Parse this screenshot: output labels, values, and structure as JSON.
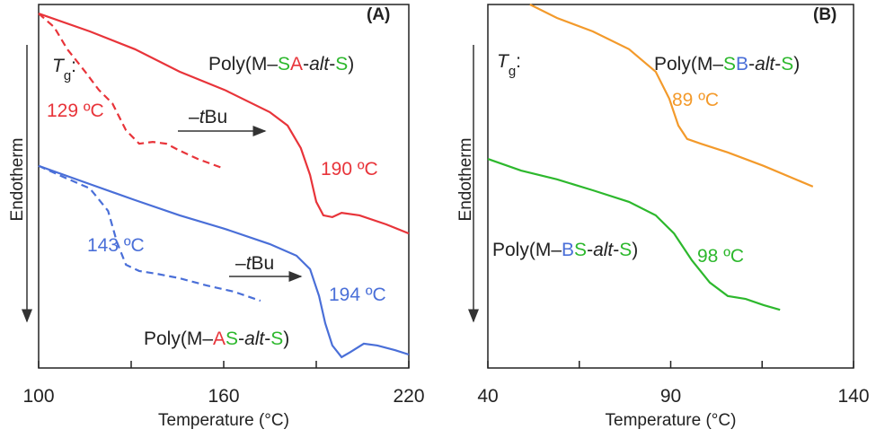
{
  "chart_data": [
    {
      "type": "line",
      "panel_label": "(A)",
      "xlabel": "Temperature (°C)",
      "ylabel": "Endotherm",
      "xlim": [
        100,
        220
      ],
      "xticks": [
        100,
        160,
        220
      ],
      "xminor": [
        130,
        190
      ],
      "ylim": [
        0,
        100
      ],
      "series": [
        {
          "color": "#e8343a",
          "linestyle": "solid",
          "x": [
            100,
            116.6,
            131.2,
            145.7,
            160.3,
            174.9,
            180.7,
            185.0,
            188.0,
            190.0,
            192.3,
            195.2,
            198.2,
            204.0,
            212.7,
            220
          ],
          "values": [
            97.5,
            92.6,
            87.7,
            81.5,
            76.5,
            70.4,
            66.7,
            60.5,
            53.1,
            45.7,
            42.0,
            41.5,
            42.7,
            42.0,
            39.5,
            37.0
          ]
        },
        {
          "color": "#e8343a",
          "linestyle": "dashed",
          "x": [
            100,
            105.0,
            109.3,
            115.1,
            119.5,
            123.9,
            128.3,
            132.6,
            137.0,
            141.4,
            145.7,
            151.6,
            160.3
          ],
          "values": [
            97.5,
            93.8,
            87.7,
            81.5,
            76.5,
            72.8,
            65.4,
            61.7,
            62.2,
            61.7,
            59.8,
            57.5,
            54.8
          ]
        },
        {
          "color": "#4a6fd8",
          "linestyle": "solid",
          "x": [
            100,
            116.6,
            131.2,
            145.7,
            160.3,
            174.9,
            183.6,
            188.0,
            190.9,
            192.9,
            195.2,
            198.2,
            201.1,
            205.4,
            209.8,
            215.6,
            220
          ],
          "values": [
            55.6,
            50.6,
            46.2,
            42.0,
            38.3,
            34.1,
            30.9,
            27.2,
            19.8,
            12.3,
            6.2,
            3.0,
            4.4,
            6.7,
            6.2,
            4.9,
            3.7
          ]
        },
        {
          "color": "#4a6fd8",
          "linestyle": "dashed",
          "x": [
            100,
            107.9,
            116.6,
            122.5,
            125.4,
            128.3,
            132.6,
            138.4,
            145.7,
            154.5,
            163.2,
            171.9
          ],
          "values": [
            55.6,
            52.6,
            49.4,
            43.2,
            34.6,
            28.4,
            26.7,
            25.9,
            24.7,
            22.7,
            21.0,
            18.5
          ]
        }
      ],
      "annotations": [
        [
          {
            "text": "T",
            "style": "italic"
          },
          {
            "text": "g",
            "style": "sub"
          },
          {
            "text": ":"
          }
        ],
        [
          {
            "text": "Poly(M–"
          },
          {
            "text": "S",
            "color": "#2db82d"
          },
          {
            "text": "A",
            "color": "#e8343a"
          },
          {
            "text": "-"
          },
          {
            "text": "alt",
            "style": "italic"
          },
          {
            "text": "-"
          },
          {
            "text": "S",
            "color": "#2db82d"
          },
          {
            "text": ")"
          }
        ],
        [
          {
            "text": "129 ºC",
            "color": "#e8343a"
          }
        ],
        [
          {
            "text": "–"
          },
          {
            "text": "t",
            "style": "italic"
          },
          {
            "text": "Bu"
          }
        ],
        [
          {
            "text": "190 ºC",
            "color": "#e8343a"
          }
        ],
        [
          {
            "text": "143 ºC",
            "color": "#4a6fd8"
          }
        ],
        [
          {
            "text": "–"
          },
          {
            "text": "t",
            "style": "italic"
          },
          {
            "text": "Bu"
          }
        ],
        [
          {
            "text": "194 ºC",
            "color": "#4a6fd8"
          }
        ],
        [
          {
            "text": "Poly(M–"
          },
          {
            "text": "A",
            "color": "#e8343a"
          },
          {
            "text": "S",
            "color": "#2db82d"
          },
          {
            "text": "-"
          },
          {
            "text": "alt",
            "style": "italic"
          },
          {
            "text": "-"
          },
          {
            "text": "S",
            "color": "#2db82d"
          },
          {
            "text": ")"
          }
        ]
      ]
    },
    {
      "type": "line",
      "panel_label": "(B)",
      "xlabel": "Temperature (°C)",
      "ylabel": "Endotherm",
      "xlim": [
        40,
        140
      ],
      "xticks": [
        40,
        90,
        140
      ],
      "xminor": [
        65,
        115
      ],
      "ylim": [
        0,
        100
      ],
      "series": [
        {
          "color": "#f39a2b",
          "linestyle": "solid",
          "x": [
            51.5,
            58.9,
            68.7,
            78.6,
            85.9,
            89.6,
            92.1,
            94.5,
            98.2,
            105.6,
            115.4,
            128.9
          ],
          "values": [
            100,
            96.3,
            92.6,
            87.7,
            81.5,
            74.1,
            66.7,
            63.0,
            61.7,
            59.3,
            55.6,
            49.9
          ]
        },
        {
          "color": "#2db82d",
          "linestyle": "solid",
          "x": [
            40,
            49.1,
            58.9,
            68.7,
            78.6,
            85.9,
            90.9,
            95.8,
            100.7,
            105.6,
            110.5,
            115.4,
            119.9
          ],
          "values": [
            57.5,
            54.3,
            51.9,
            48.9,
            45.7,
            42.0,
            37.0,
            29.6,
            23.5,
            19.8,
            19.0,
            17.3,
            16.0
          ]
        }
      ],
      "annotations": [
        [
          {
            "text": "T",
            "style": "italic"
          },
          {
            "text": "g",
            "style": "sub"
          },
          {
            "text": ":"
          }
        ],
        [
          {
            "text": "Poly(M–"
          },
          {
            "text": "S",
            "color": "#2db82d"
          },
          {
            "text": "B",
            "color": "#4a6fd8"
          },
          {
            "text": "-"
          },
          {
            "text": "alt",
            "style": "italic"
          },
          {
            "text": "-"
          },
          {
            "text": "S",
            "color": "#2db82d"
          },
          {
            "text": ")"
          }
        ],
        [
          {
            "text": "89 ºC",
            "color": "#f39a2b"
          }
        ],
        [
          {
            "text": "Poly(M–"
          },
          {
            "text": "B",
            "color": "#4a6fd8"
          },
          {
            "text": "S",
            "color": "#2db82d"
          },
          {
            "text": "-"
          },
          {
            "text": "alt",
            "style": "italic"
          },
          {
            "text": "-"
          },
          {
            "text": "S",
            "color": "#2db82d"
          },
          {
            "text": ")"
          }
        ],
        [
          {
            "text": "98 ºC",
            "color": "#2db82d"
          }
        ]
      ]
    }
  ]
}
